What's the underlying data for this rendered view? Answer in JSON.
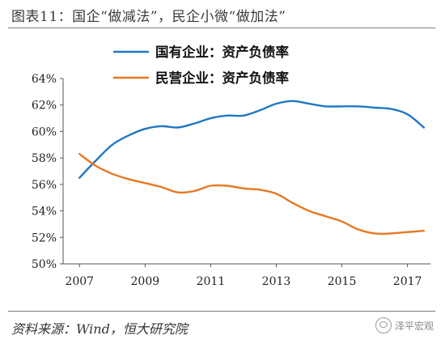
{
  "figure_title": "图表11：国企“做减法”，民企小微“做加法”",
  "source": "资料来源：Wind，恒大研究院",
  "watermark": "泽平宏观",
  "watermark_icon": "wechat-icon",
  "chart_data": {
    "type": "line",
    "title": "",
    "xlabel": "",
    "ylabel": "",
    "ylim": [
      50,
      64
    ],
    "xlim": [
      2006.5,
      2017.7
    ],
    "yticks": [
      "50%",
      "52%",
      "54%",
      "56%",
      "58%",
      "60%",
      "62%",
      "64%"
    ],
    "ytick_values": [
      50,
      52,
      54,
      56,
      58,
      60,
      62,
      64
    ],
    "xticks": [
      "2007",
      "2009",
      "2011",
      "2013",
      "2015",
      "2017"
    ],
    "xtick_values": [
      2007,
      2009,
      2011,
      2013,
      2015,
      2017
    ],
    "grid": false,
    "legend_position": "top-center",
    "series": [
      {
        "name": "国有企业：资产负债率",
        "color": "#1f77c4",
        "x": [
          2007,
          2007.5,
          2008,
          2008.5,
          2009,
          2009.5,
          2010,
          2010.5,
          2011,
          2011.5,
          2012,
          2012.5,
          2013,
          2013.5,
          2014,
          2014.5,
          2015,
          2015.5,
          2016,
          2016.5,
          2017,
          2017.5
        ],
        "values": [
          56.5,
          57.8,
          59.0,
          59.7,
          60.2,
          60.4,
          60.3,
          60.6,
          61.0,
          61.2,
          61.2,
          61.6,
          62.1,
          62.3,
          62.1,
          61.9,
          61.9,
          61.9,
          61.8,
          61.7,
          61.3,
          60.3
        ]
      },
      {
        "name": "民营企业：资产负债率",
        "color": "#e87722",
        "x": [
          2007,
          2007.5,
          2008,
          2008.5,
          2009,
          2009.5,
          2010,
          2010.5,
          2011,
          2011.5,
          2012,
          2012.5,
          2013,
          2013.5,
          2014,
          2014.5,
          2015,
          2015.5,
          2016,
          2016.5,
          2017,
          2017.5
        ],
        "values": [
          58.3,
          57.4,
          56.8,
          56.4,
          56.1,
          55.8,
          55.4,
          55.5,
          55.9,
          55.9,
          55.7,
          55.6,
          55.3,
          54.6,
          54.0,
          53.6,
          53.2,
          52.6,
          52.3,
          52.3,
          52.4,
          52.5
        ]
      }
    ]
  }
}
